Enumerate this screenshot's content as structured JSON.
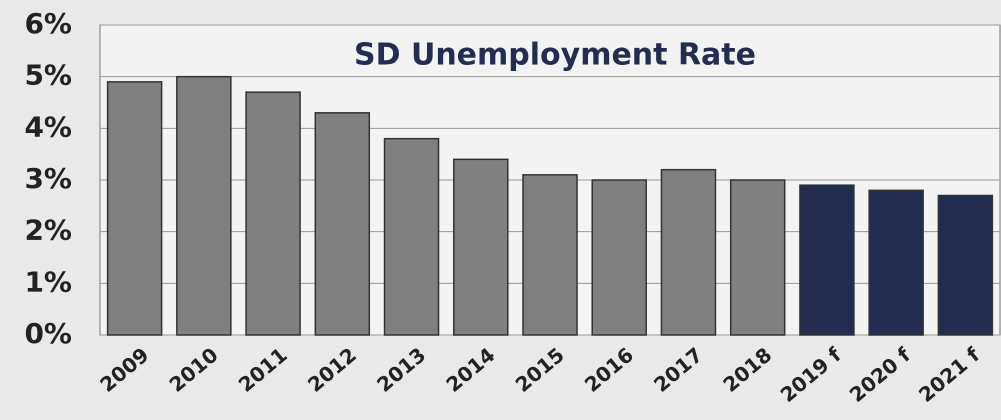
{
  "chart_data": {
    "type": "bar",
    "title": "SD Unemployment Rate",
    "categories": [
      "2009",
      "2010",
      "2011",
      "2012",
      "2013",
      "2014",
      "2015",
      "2016",
      "2017",
      "2018",
      "2019 f",
      "2020 f",
      "2021 f"
    ],
    "values": [
      4.9,
      5.0,
      4.7,
      4.3,
      3.8,
      3.4,
      3.1,
      3.0,
      3.2,
      3.0,
      2.9,
      2.8,
      2.7
    ],
    "colors": [
      "#808080",
      "#808080",
      "#808080",
      "#808080",
      "#808080",
      "#808080",
      "#808080",
      "#808080",
      "#808080",
      "#808080",
      "#232d52",
      "#232d52",
      "#232d52"
    ],
    "ylim": [
      0,
      6
    ],
    "yticks": [
      {
        "value": 0,
        "label": "0%"
      },
      {
        "value": 1,
        "label": "1%"
      },
      {
        "value": 2,
        "label": "2%"
      },
      {
        "value": 3,
        "label": "3%"
      },
      {
        "value": 4,
        "label": "4%"
      },
      {
        "value": 5,
        "label": "5%"
      },
      {
        "value": 6,
        "label": "6%"
      }
    ],
    "grid": true
  }
}
